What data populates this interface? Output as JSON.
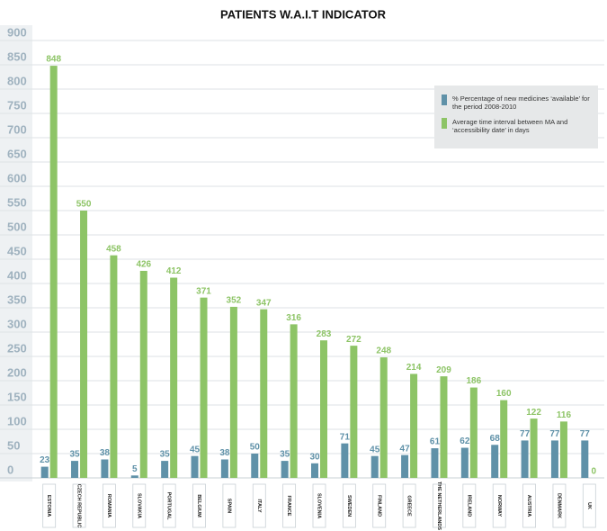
{
  "chart_data": {
    "type": "bar",
    "title": "PATIENTS W.A.I.T INDICATOR",
    "categories": [
      "ESTONIA",
      "CZECH REPUBLIC",
      "ROMANIA",
      "SLOVAKIA",
      "PORTUGAL",
      "BELGIUM",
      "SPAIN",
      "ITALY",
      "FRANCE",
      "SLOVENIA",
      "SWEDEN",
      "FINLAND",
      "GREECE",
      "THE NETHERLANDS",
      "IRELAND",
      "NORWAY",
      "AUSTRIA",
      "DENMARK",
      "UK"
    ],
    "series": [
      {
        "name": "% Percentage of new medicines ‘available’ for the period 2008-2010",
        "color": "#5f91a8",
        "values": [
          23,
          35,
          38,
          5,
          35,
          45,
          38,
          50,
          35,
          30,
          71,
          45,
          47,
          61,
          62,
          68,
          77,
          77,
          77
        ]
      },
      {
        "name": "Average time interval between MA and ‘accessibility date’ in days",
        "color": "#8dc466",
        "values": [
          848,
          550,
          458,
          426,
          412,
          371,
          352,
          347,
          316,
          283,
          272,
          248,
          214,
          209,
          186,
          160,
          122,
          116,
          0
        ]
      }
    ],
    "ylim": [
      0,
      900
    ],
    "yticks": [
      0,
      50,
      100,
      150,
      200,
      250,
      300,
      350,
      400,
      450,
      500,
      550,
      600,
      650,
      700,
      750,
      800,
      850,
      900
    ],
    "grid": true,
    "legend": "upper right"
  }
}
